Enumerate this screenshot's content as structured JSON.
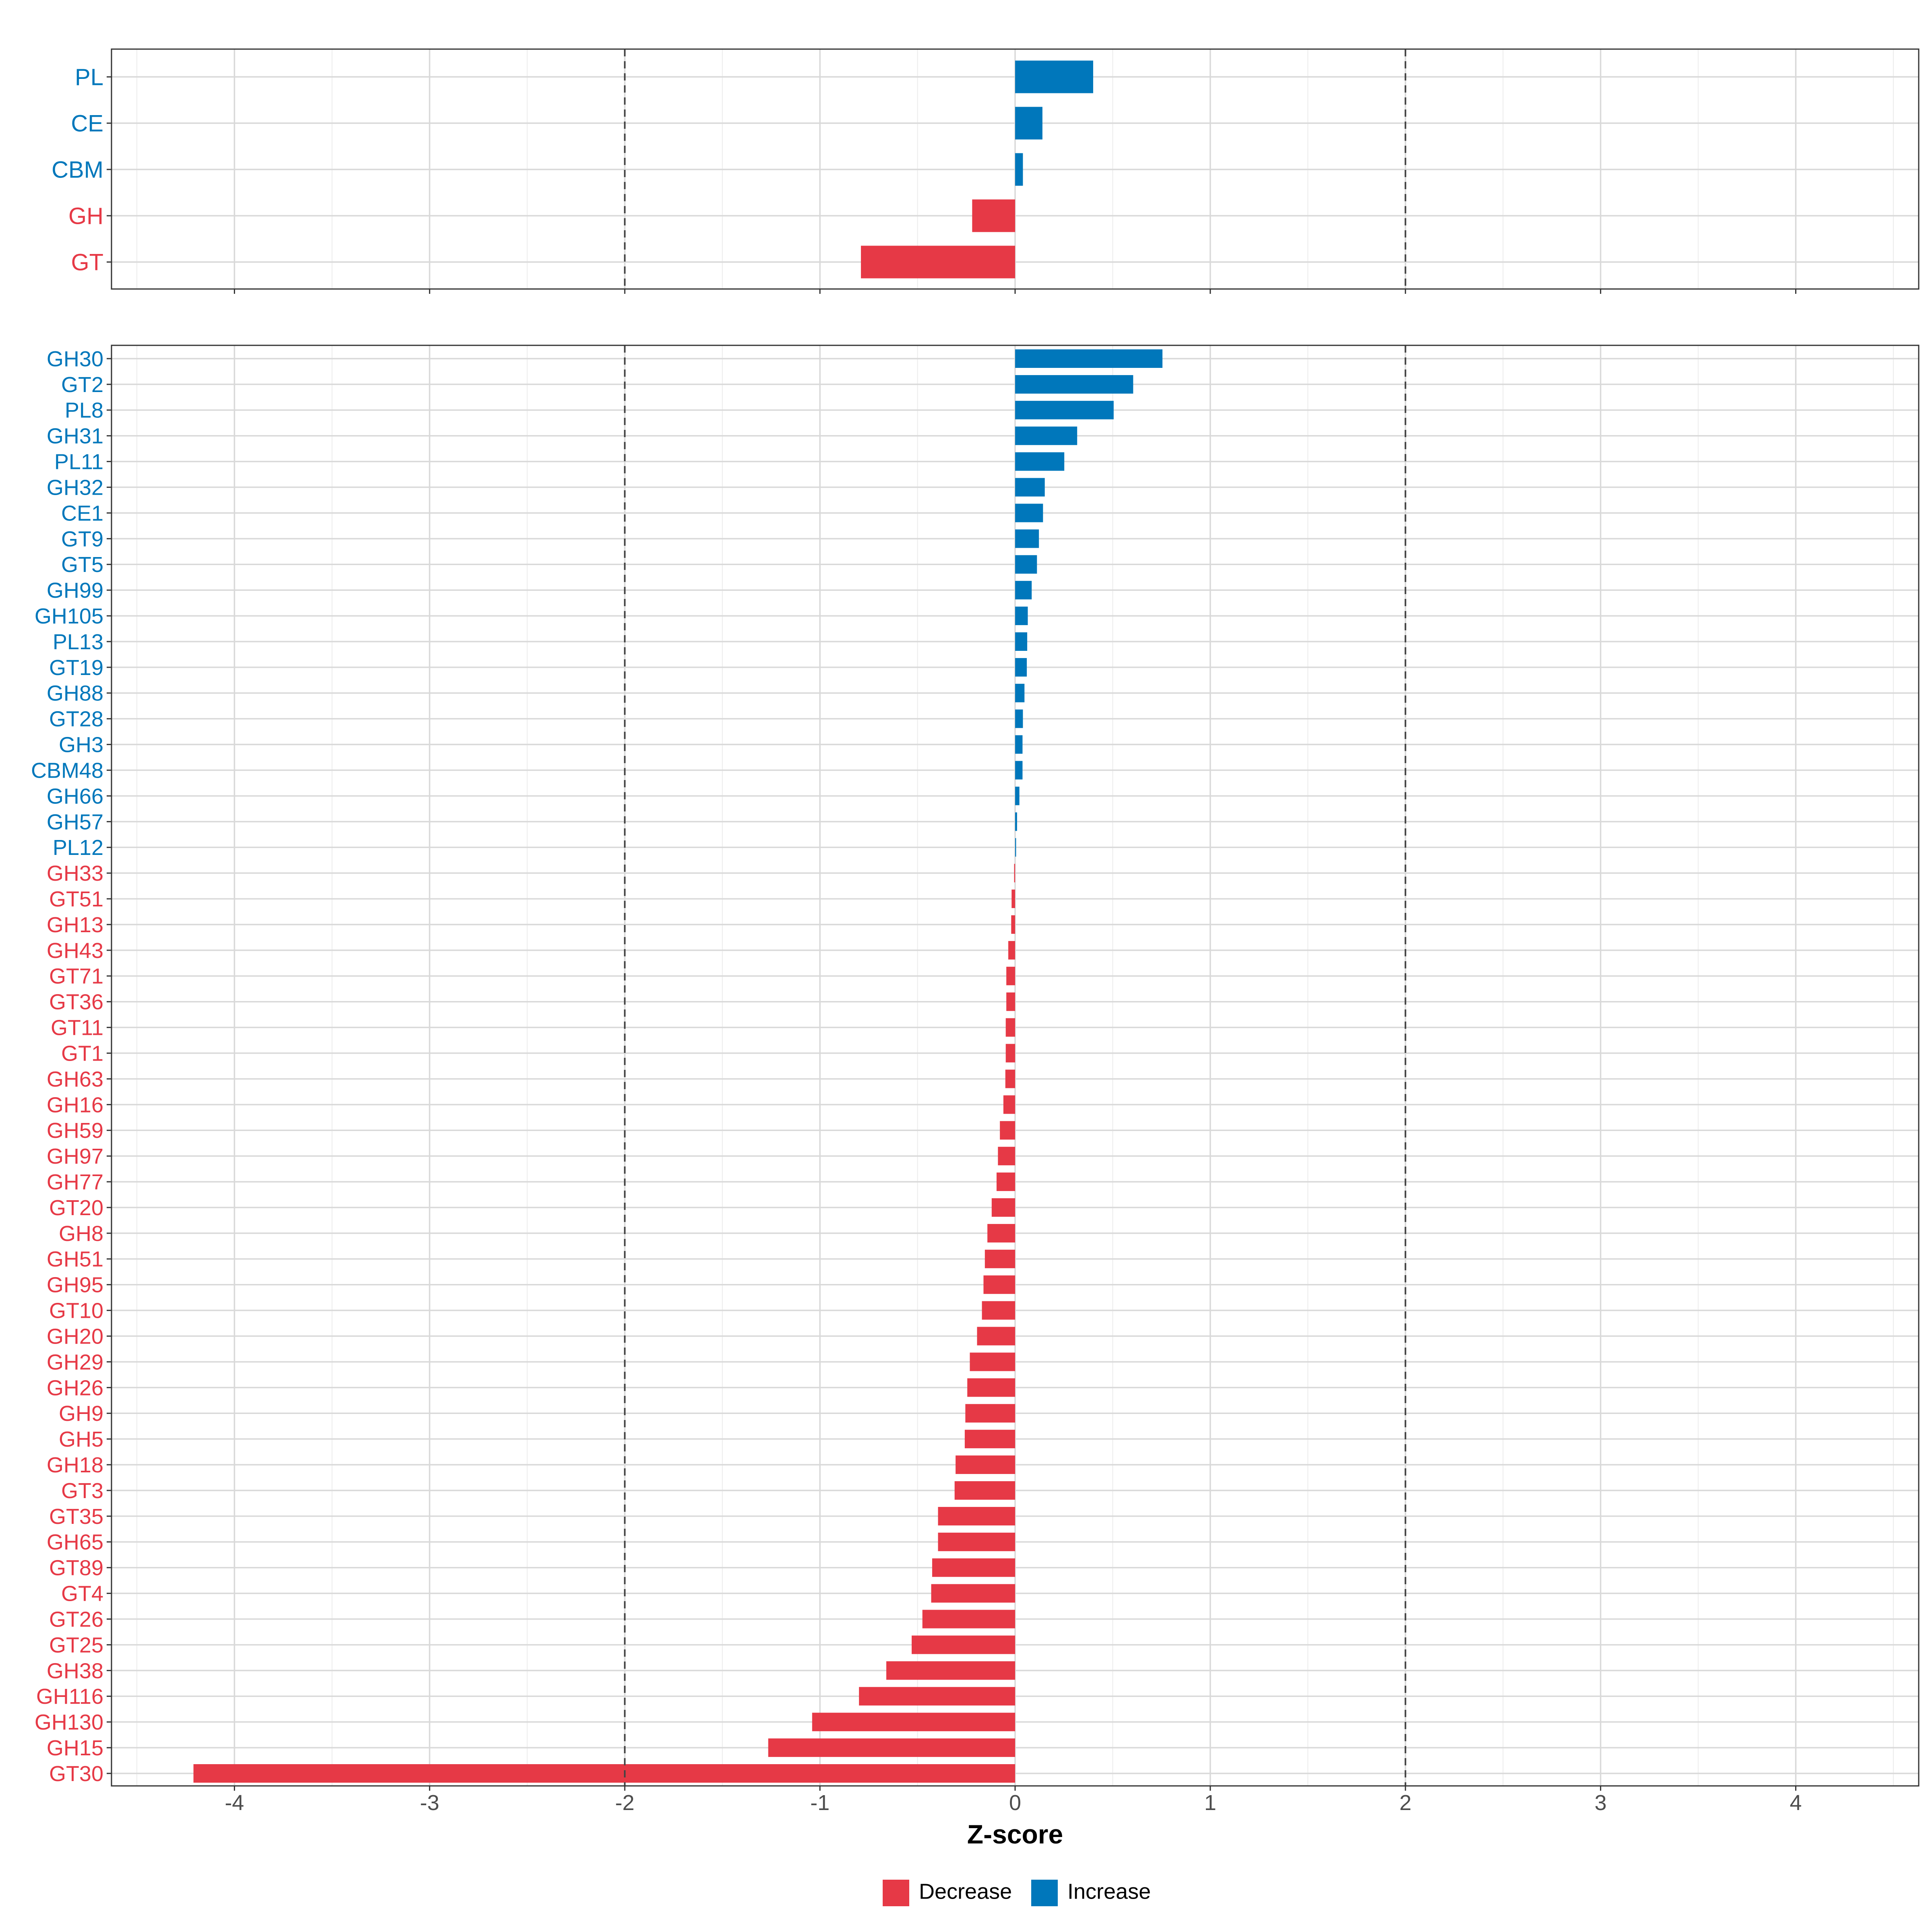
{
  "chart_data": {
    "type": "bar",
    "orientation": "horizontal",
    "xlabel": "Z-score",
    "xlim": [
      -4.63,
      4.63
    ],
    "xticks": [
      -4,
      -3,
      -2,
      -1,
      0,
      1,
      2,
      3,
      4
    ],
    "xtick_labels": [
      "-4",
      "-3",
      "-2",
      "-1",
      "0",
      "1",
      "2",
      "3",
      "4"
    ],
    "reference_lines": [
      -2,
      2
    ],
    "grid": true,
    "colors": {
      "Decrease": "#E63946",
      "Increase": "#0077BB"
    },
    "legend": {
      "position": "bottom",
      "entries": [
        {
          "label": "Decrease",
          "color": "#E63946"
        },
        {
          "label": "Increase",
          "color": "#0077BB"
        }
      ]
    },
    "panels": [
      {
        "name": "class",
        "categories": [
          "PL",
          "CE",
          "CBM",
          "GH",
          "GT"
        ],
        "values": [
          0.4,
          0.14,
          0.04,
          -0.22,
          -0.79
        ]
      },
      {
        "name": "family",
        "categories": [
          "GH30",
          "GT2",
          "PL8",
          "GH31",
          "PL11",
          "GH32",
          "CE1",
          "GT9",
          "GT5",
          "GH99",
          "GH105",
          "PL13",
          "GT19",
          "GH88",
          "GT28",
          "GH3",
          "CBM48",
          "GH66",
          "GH57",
          "PL12",
          "GH33",
          "GT51",
          "GH13",
          "GH43",
          "GT71",
          "GT36",
          "GT11",
          "GT1",
          "GH63",
          "GH16",
          "GH59",
          "GH97",
          "GH77",
          "GT20",
          "GH8",
          "GH51",
          "GH95",
          "GT10",
          "GH20",
          "GH29",
          "GH26",
          "GH9",
          "GH5",
          "GH18",
          "GT3",
          "GT35",
          "GH65",
          "GT89",
          "GT4",
          "GT26",
          "GT25",
          "GH38",
          "GH116",
          "GH130",
          "GH15",
          "GT30"
        ],
        "values": [
          0.755,
          0.605,
          0.505,
          0.318,
          0.252,
          0.152,
          0.143,
          0.122,
          0.112,
          0.085,
          0.065,
          0.062,
          0.06,
          0.048,
          0.04,
          0.038,
          0.038,
          0.022,
          0.01,
          0.005,
          -0.005,
          -0.018,
          -0.02,
          -0.035,
          -0.045,
          -0.045,
          -0.048,
          -0.048,
          -0.05,
          -0.06,
          -0.078,
          -0.088,
          -0.095,
          -0.12,
          -0.142,
          -0.155,
          -0.162,
          -0.17,
          -0.195,
          -0.232,
          -0.245,
          -0.255,
          -0.258,
          -0.305,
          -0.31,
          -0.395,
          -0.395,
          -0.425,
          -0.43,
          -0.475,
          -0.53,
          -0.66,
          -0.8,
          -1.04,
          -1.265,
          -4.21
        ]
      }
    ]
  }
}
